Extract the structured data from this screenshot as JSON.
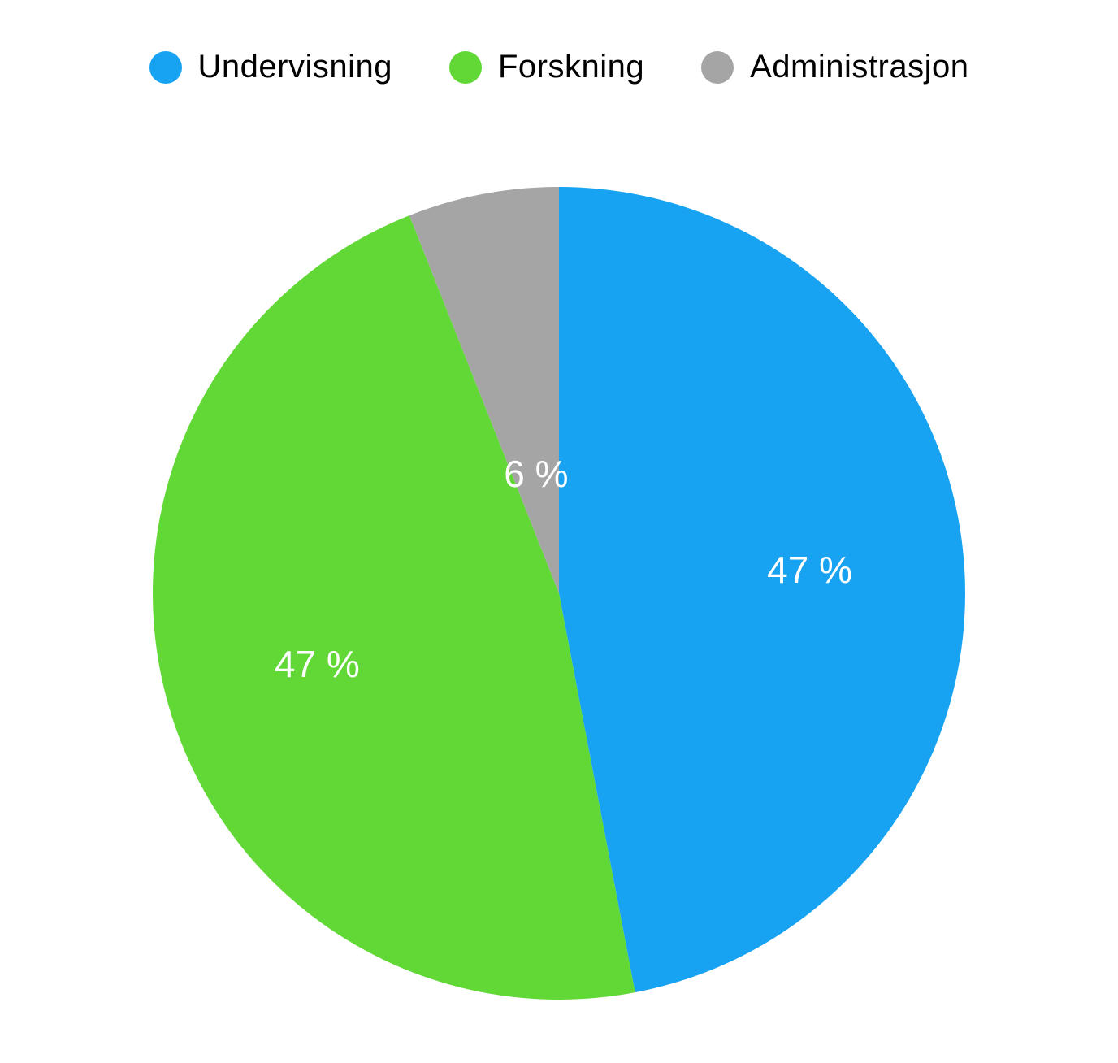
{
  "chart": {
    "type": "pie",
    "background_color": "#ffffff",
    "label_fontsize": 46,
    "label_color": "#ffffff",
    "legend_fontsize": 40,
    "legend_text_color": "#000000",
    "legend_dot_diameter": 40,
    "pie_radius": 500,
    "slices": [
      {
        "label": "Undervisning",
        "value": 47,
        "display": "47 %",
        "color": "#17a3f2"
      },
      {
        "label": "Forskning",
        "value": 47,
        "display": "47 %",
        "color": "#61d836"
      },
      {
        "label": "Administrasjon",
        "value": 6,
        "display": "6 %",
        "color": "#a5a5a5"
      }
    ]
  }
}
